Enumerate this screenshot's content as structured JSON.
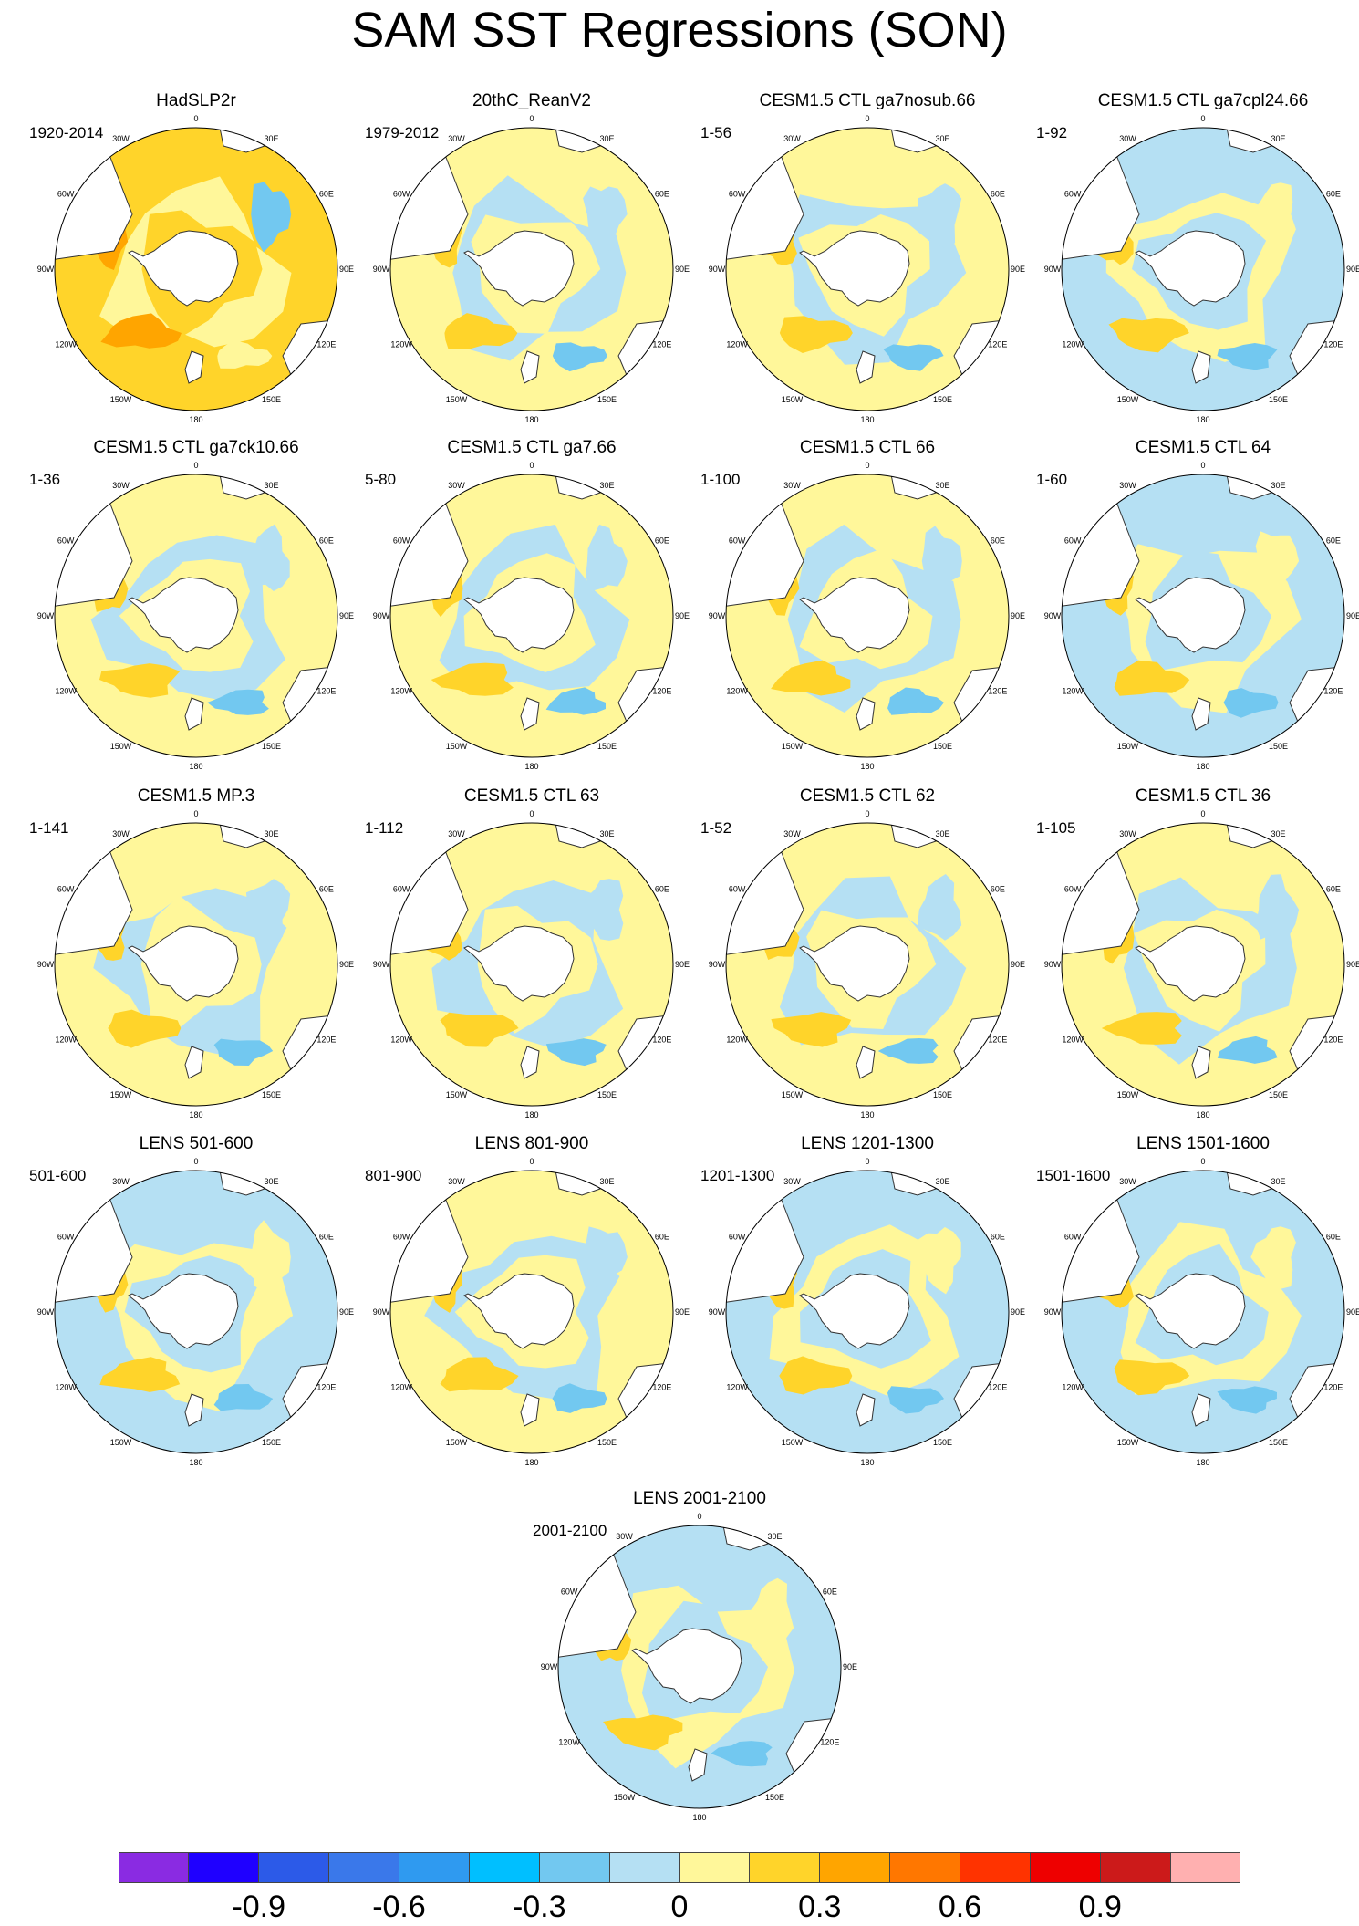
{
  "title": "SAM SST Regressions (SON)",
  "longitude_labels": [
    "0",
    "30E",
    "60E",
    "90E",
    "120E",
    "150E",
    "180",
    "150W",
    "120W",
    "90W",
    "60W",
    "30W"
  ],
  "panels": [
    {
      "title": "HadSLP2r",
      "period": "1920-2014",
      "background": "#ffd42a"
    },
    {
      "title": "20thC_ReanV2",
      "period": "1979-2012",
      "background": "#fff79a"
    },
    {
      "title": "CESM1.5 CTL ga7nosub.66",
      "period": "1-56",
      "background": "#fff79a"
    },
    {
      "title": "CESM1.5 CTL ga7cpl24.66",
      "period": "1-92",
      "background": "#b5e0f3"
    },
    {
      "title": "CESM1.5 CTL ga7ck10.66",
      "period": "1-36",
      "background": "#fff79a"
    },
    {
      "title": "CESM1.5 CTL ga7.66",
      "period": "5-80",
      "background": "#fff79a"
    },
    {
      "title": "CESM1.5 CTL 66",
      "period": "1-100",
      "background": "#fff79a"
    },
    {
      "title": "CESM1.5 CTL 64",
      "period": "1-60",
      "background": "#b5e0f3"
    },
    {
      "title": "CESM1.5 MP.3",
      "period": "1-141",
      "background": "#fff79a"
    },
    {
      "title": "CESM1.5 CTL 63",
      "period": "1-112",
      "background": "#fff79a"
    },
    {
      "title": "CESM1.5 CTL 62",
      "period": "1-52",
      "background": "#fff79a"
    },
    {
      "title": "CESM1.5 CTL 36",
      "period": "1-105",
      "background": "#fff79a"
    },
    {
      "title": "LENS 501-600",
      "period": "501-600",
      "background": "#b5e0f3"
    },
    {
      "title": "LENS 801-900",
      "period": "801-900",
      "background": "#fff79a"
    },
    {
      "title": "LENS 1201-1300",
      "period": "1201-1300",
      "background": "#b5e0f3"
    },
    {
      "title": "LENS 1501-1600",
      "period": "1501-1600",
      "background": "#b5e0f3"
    },
    {
      "title": "LENS 2001-2100",
      "period": "2001-2100",
      "background": "#b5e0f3"
    }
  ],
  "colorbar": {
    "colors": [
      "#8a2be2",
      "#1f00ff",
      "#2c5ae8",
      "#3a78ea",
      "#2f9af0",
      "#00bfff",
      "#72c8f0",
      "#b5e0f3",
      "#fff79a",
      "#ffd42a",
      "#ffa500",
      "#ff7700",
      "#ff3300",
      "#ee0000",
      "#cc1a1a",
      "#ffb0b0"
    ],
    "labels": [
      "-0.9",
      "-0.6",
      "-0.3",
      "0",
      "0.3",
      "0.6",
      "0.9"
    ]
  },
  "land_color": "#ffffff",
  "coast_color": "#333333"
}
